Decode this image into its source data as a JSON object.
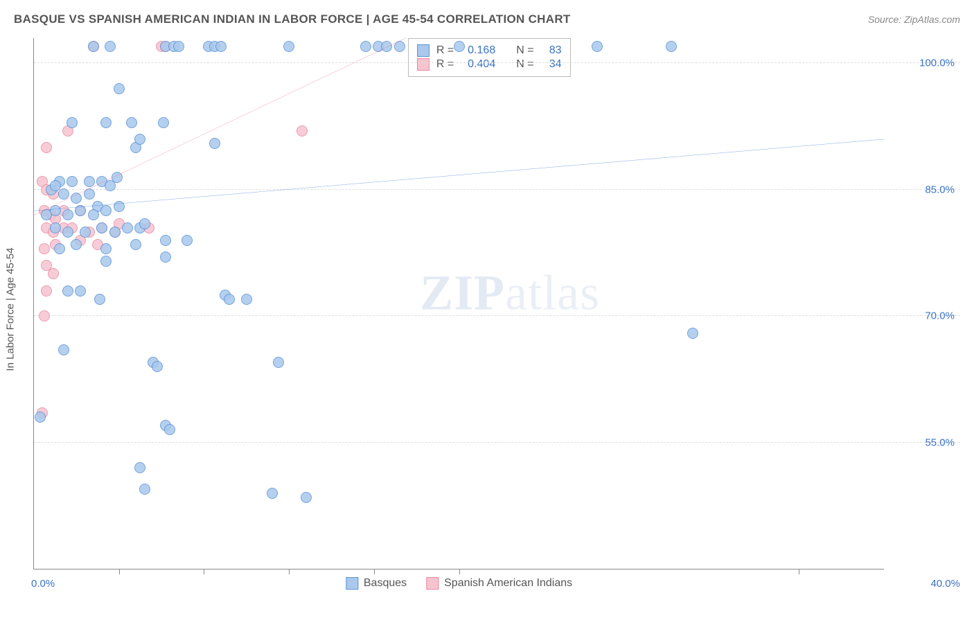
{
  "header": {
    "title": "BASQUE VS SPANISH AMERICAN INDIAN IN LABOR FORCE | AGE 45-54 CORRELATION CHART",
    "source": "Source: ZipAtlas.com"
  },
  "watermark": {
    "zip": "ZIP",
    "atlas": "atlas"
  },
  "chart": {
    "type": "scatter",
    "y_axis_label": "In Labor Force | Age 45-54",
    "xlim": [
      0,
      40
    ],
    "ylim": [
      40,
      103
    ],
    "x_min_label": "0.0%",
    "x_max_label": "40.0%",
    "y_ticks": [
      {
        "v": 100,
        "label": "100.0%"
      },
      {
        "v": 85,
        "label": "85.0%"
      },
      {
        "v": 70,
        "label": "70.0%"
      },
      {
        "v": 55,
        "label": "55.0%"
      }
    ],
    "x_tick_positions": [
      4,
      8,
      12,
      16,
      20,
      36
    ],
    "background_color": "#ffffff",
    "grid_color": "#dddddd",
    "series": {
      "basques": {
        "label": "Basques",
        "point_fill": "#a9c8ec",
        "point_stroke": "#5b93d6",
        "point_radius": 8,
        "trend_color": "#2a6fd6",
        "trend_width": 2.5,
        "trend_start_y": 82.5,
        "trend_end_y": 91,
        "R": "0.168",
        "N": "83",
        "points": [
          [
            2.8,
            102
          ],
          [
            3.6,
            102
          ],
          [
            6.2,
            102
          ],
          [
            6.6,
            102
          ],
          [
            6.8,
            102
          ],
          [
            8.2,
            102
          ],
          [
            8.5,
            102
          ],
          [
            8.8,
            102
          ],
          [
            12,
            102
          ],
          [
            15.6,
            102
          ],
          [
            16.2,
            102
          ],
          [
            16.6,
            102
          ],
          [
            17.2,
            102
          ],
          [
            20,
            102
          ],
          [
            26.5,
            102
          ],
          [
            30,
            102
          ],
          [
            4,
            97
          ],
          [
            1.8,
            93
          ],
          [
            3.4,
            93
          ],
          [
            4.6,
            93
          ],
          [
            6.1,
            93
          ],
          [
            1.2,
            86
          ],
          [
            1.8,
            86
          ],
          [
            2.6,
            86
          ],
          [
            3.2,
            86
          ],
          [
            3.9,
            86.5
          ],
          [
            4.8,
            90
          ],
          [
            8.5,
            90.5
          ],
          [
            0.8,
            85
          ],
          [
            1.0,
            85.5
          ],
          [
            1.4,
            84.5
          ],
          [
            2.0,
            84
          ],
          [
            2.6,
            84.5
          ],
          [
            3.0,
            83
          ],
          [
            3.6,
            85.5
          ],
          [
            4.0,
            83
          ],
          [
            0.6,
            82
          ],
          [
            1.0,
            82.5
          ],
          [
            1.6,
            82
          ],
          [
            2.2,
            82.5
          ],
          [
            2.8,
            82
          ],
          [
            3.4,
            82.5
          ],
          [
            1.0,
            80.5
          ],
          [
            1.6,
            80
          ],
          [
            2.4,
            80
          ],
          [
            3.2,
            80.5
          ],
          [
            3.8,
            80
          ],
          [
            4.4,
            80.5
          ],
          [
            5.0,
            80.5
          ],
          [
            5.2,
            81
          ],
          [
            1.2,
            78
          ],
          [
            2.0,
            78.5
          ],
          [
            3.4,
            78
          ],
          [
            4.8,
            78.5
          ],
          [
            6.2,
            79
          ],
          [
            3.4,
            76.5
          ],
          [
            6.2,
            77
          ],
          [
            7.2,
            79
          ],
          [
            1.6,
            73
          ],
          [
            2.2,
            73
          ],
          [
            3.1,
            72
          ],
          [
            5.0,
            91
          ],
          [
            9.0,
            72.5
          ],
          [
            9.2,
            72
          ],
          [
            10.0,
            72
          ],
          [
            1.4,
            66
          ],
          [
            31,
            68
          ],
          [
            5.6,
            64.5
          ],
          [
            5.8,
            64
          ],
          [
            11.5,
            64.5
          ],
          [
            0.3,
            58
          ],
          [
            6.2,
            57
          ],
          [
            6.4,
            56.5
          ],
          [
            5.0,
            52
          ],
          [
            5.2,
            49.5
          ],
          [
            11.2,
            49
          ],
          [
            12.8,
            48.5
          ]
        ]
      },
      "spanish": {
        "label": "Spanish American Indians",
        "point_fill": "#f6c4cf",
        "point_stroke": "#e88aa0",
        "point_radius": 8,
        "trend_color": "#ea5b8a",
        "trend_width": 2.5,
        "trend_start_y": 82,
        "trend_end_y": 130,
        "R": "0.404",
        "N": "34",
        "points": [
          [
            2.8,
            102
          ],
          [
            6.0,
            102
          ],
          [
            6.2,
            102
          ],
          [
            12.6,
            92
          ],
          [
            1.6,
            92
          ],
          [
            0.6,
            90
          ],
          [
            0.4,
            86
          ],
          [
            0.6,
            85
          ],
          [
            0.9,
            84.5
          ],
          [
            0.5,
            82.5
          ],
          [
            0.8,
            82
          ],
          [
            1.0,
            81.5
          ],
          [
            1.4,
            82.5
          ],
          [
            2.2,
            82.5
          ],
          [
            0.6,
            80.5
          ],
          [
            0.9,
            80
          ],
          [
            1.4,
            80.5
          ],
          [
            1.8,
            80.5
          ],
          [
            2.6,
            80
          ],
          [
            3.2,
            80.5
          ],
          [
            3.8,
            80
          ],
          [
            5.4,
            80.5
          ],
          [
            0.5,
            78
          ],
          [
            1.0,
            78.5
          ],
          [
            2.2,
            79
          ],
          [
            3.0,
            78.5
          ],
          [
            4.0,
            81
          ],
          [
            0.6,
            76
          ],
          [
            0.9,
            75
          ],
          [
            0.6,
            73
          ],
          [
            0.5,
            70
          ],
          [
            0.4,
            58.5
          ]
        ]
      }
    },
    "stats_legend": {
      "r_label": "R =",
      "n_label": "N ="
    }
  }
}
